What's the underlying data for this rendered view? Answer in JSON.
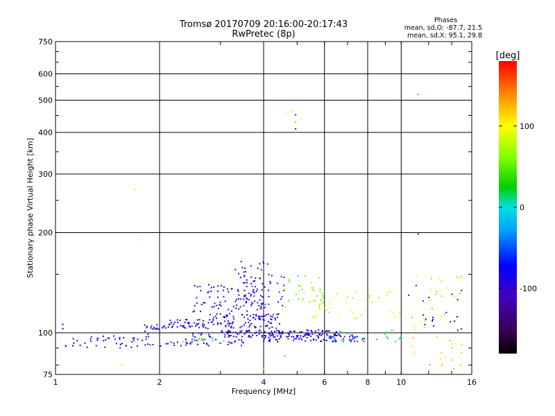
{
  "chart_data": {
    "type": "scatter",
    "title": "Tromsø 20170709 20:16:00-20:17:43",
    "subtitle": "RwPretec (8p)",
    "xlabel": "Frequency [MHz]",
    "ylabel": "Stationary phase Virtual Height [km]",
    "x_scale": "log",
    "y_scale": "log",
    "xlim": [
      1,
      16
    ],
    "ylim": [
      75,
      750
    ],
    "x_ticks": [
      1,
      2,
      4,
      6,
      8,
      10,
      16
    ],
    "x_tick_labels": [
      "1",
      "2",
      "4",
      "6",
      "8",
      "10",
      "16"
    ],
    "y_ticks": [
      75,
      100,
      200,
      300,
      400,
      500,
      600,
      750
    ],
    "y_tick_labels": [
      "75",
      "100",
      "200",
      "300",
      "400",
      "500",
      "600",
      "750"
    ],
    "grid": true,
    "stats": {
      "heading": "Phases",
      "line_o": "mean, sd,O: -87.7, 21.5",
      "line_x": "mean, sd,X:  95.1, 29.8"
    },
    "colorbar": {
      "label": "[deg]",
      "range": [
        -180,
        180
      ],
      "ticks": [
        100,
        0,
        -100
      ],
      "tick_labels": [
        "100",
        "0",
        "-100"
      ]
    },
    "clusters": [
      {
        "x_range": [
          1.8,
          2.1
        ],
        "y_range": [
          101,
          106
        ],
        "phase": -95,
        "count": 18
      },
      {
        "x_range": [
          2.1,
          2.8
        ],
        "y_range": [
          103,
          110
        ],
        "phase": -90,
        "count": 45
      },
      {
        "x_range": [
          2.8,
          4.6
        ],
        "y_range": [
          103,
          114
        ],
        "phase": -88,
        "count": 85
      },
      {
        "x_range": [
          2.5,
          4.0
        ],
        "y_range": [
          111,
          140
        ],
        "phase": -92,
        "count": 75
      },
      {
        "x_range": [
          3.3,
          4.2
        ],
        "y_range": [
          118,
          165
        ],
        "phase": -85,
        "count": 55
      },
      {
        "x_range": [
          3.5,
          4.6
        ],
        "y_range": [
          120,
          150
        ],
        "phase": -60,
        "count": 30
      },
      {
        "x_range": [
          3.0,
          6.5
        ],
        "y_range": [
          97,
          102
        ],
        "phase": -90,
        "count": 120
      },
      {
        "x_range": [
          4.0,
          8.0
        ],
        "y_range": [
          94,
          99
        ],
        "phase": -92,
        "count": 85
      },
      {
        "x_range": [
          1.05,
          1.9
        ],
        "y_range": [
          90,
          98
        ],
        "phase": -92,
        "count": 45
      },
      {
        "x_range": [
          1.8,
          3.5
        ],
        "y_range": [
          91,
          100
        ],
        "phase": -85,
        "count": 55
      },
      {
        "x_range": [
          2.3,
          3.2
        ],
        "y_range": [
          94,
          97
        ],
        "phase": 40,
        "count": 12
      },
      {
        "x_range": [
          4.5,
          6.0
        ],
        "y_range": [
          115,
          150
        ],
        "phase": 60,
        "count": 30
      },
      {
        "x_range": [
          5.5,
          10.0
        ],
        "y_range": [
          110,
          135
        ],
        "phase": 95,
        "count": 40
      },
      {
        "x_range": [
          6.0,
          10.0
        ],
        "y_range": [
          94,
          102
        ],
        "phase": 10,
        "count": 25
      },
      {
        "x_range": [
          10.5,
          15.0
        ],
        "y_range": [
          102,
          150
        ],
        "phase": 110,
        "count": 30
      },
      {
        "x_range": [
          10.5,
          15.0
        ],
        "y_range": [
          76,
          98
        ],
        "phase": 120,
        "count": 20
      },
      {
        "x_range": [
          10.5,
          15.0
        ],
        "y_range": [
          100,
          140
        ],
        "phase": -90,
        "count": 20
      }
    ],
    "outliers": [
      {
        "x": 4.7,
        "y": 460,
        "phase": 100
      },
      {
        "x": 4.85,
        "y": 465,
        "phase": 110
      },
      {
        "x": 4.95,
        "y": 452,
        "phase": -100
      },
      {
        "x": 4.95,
        "y": 430,
        "phase": 50
      },
      {
        "x": 4.95,
        "y": 410,
        "phase": -80
      },
      {
        "x": 1.7,
        "y": 270,
        "phase": 110
      },
      {
        "x": 1.75,
        "y": 190,
        "phase": 100
      },
      {
        "x": 11.2,
        "y": 520,
        "phase": -20
      },
      {
        "x": 11.2,
        "y": 198,
        "phase": -110
      },
      {
        "x": 1.05,
        "y": 103,
        "phase": -95
      },
      {
        "x": 1.05,
        "y": 106,
        "phase": -95
      },
      {
        "x": 4.0,
        "y": 78,
        "phase": 60
      },
      {
        "x": 4.6,
        "y": 85,
        "phase": 140
      },
      {
        "x": 1.55,
        "y": 80,
        "phase": 90
      }
    ]
  }
}
